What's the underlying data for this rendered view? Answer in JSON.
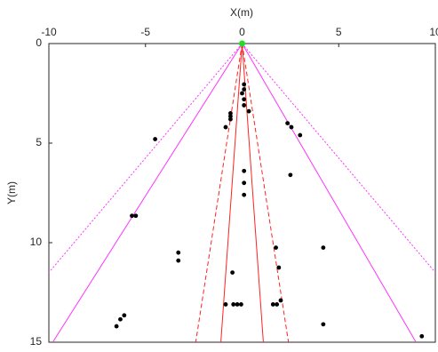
{
  "chart_data": {
    "type": "scatter",
    "x_label": "X(m)",
    "y_label": "Y(m)",
    "xlim": [
      -10,
      10
    ],
    "ylim": [
      0,
      15
    ],
    "y_inverted": true,
    "x_axis_position": "top",
    "xticks": [
      -10,
      -5,
      0,
      5,
      10
    ],
    "yticks": [
      0,
      5,
      10,
      15
    ],
    "series": [
      {
        "color": "#000000",
        "x": [
          0.1,
          0.1,
          0,
          0.1,
          0.1,
          0.35,
          -0.6,
          -0.6,
          -0.6,
          -0.85,
          2.35,
          2.55,
          3.0,
          -4.5,
          0.1,
          0.1,
          0.1,
          2.5,
          -5.7,
          -5.5,
          -3.3,
          -3.3,
          1.75,
          4.2,
          1.9,
          -0.5,
          -0.85,
          -0.45,
          -0.25,
          -0.05,
          1.6,
          1.8,
          2.0,
          -6.1,
          -6.3,
          -6.5,
          4.2,
          9.3
        ],
        "y": [
          2.05,
          2.3,
          2.5,
          2.8,
          3.1,
          3.4,
          3.5,
          3.65,
          3.8,
          4.2,
          4.0,
          4.2,
          4.6,
          4.8,
          6.4,
          7.0,
          7.6,
          6.6,
          8.65,
          8.65,
          10.5,
          10.9,
          10.25,
          10.25,
          11.25,
          11.5,
          13.1,
          13.1,
          13.1,
          13.1,
          13.1,
          13.1,
          12.9,
          13.65,
          13.85,
          14.2,
          14.1,
          14.7
        ]
      }
    ],
    "lines": [
      {
        "color": "#ff33ff",
        "style": "dotted",
        "x": [
          0,
          -10
        ],
        "y": [
          0,
          11.5
        ]
      },
      {
        "color": "#ff33ff",
        "style": "dotted",
        "x": [
          0,
          10
        ],
        "y": [
          0,
          11.5
        ]
      },
      {
        "color": "#ff33ff",
        "style": "solid",
        "x": [
          0,
          -9.8
        ],
        "y": [
          0,
          15
        ]
      },
      {
        "color": "#ff33ff",
        "style": "solid",
        "x": [
          0,
          9.0
        ],
        "y": [
          0,
          15
        ]
      },
      {
        "color": "#ff2222",
        "style": "dashed",
        "x": [
          0,
          -2.4
        ],
        "y": [
          0,
          15
        ]
      },
      {
        "color": "#ff2222",
        "style": "dashed",
        "x": [
          0,
          2.4
        ],
        "y": [
          0,
          15
        ]
      },
      {
        "color": "#ff2222",
        "style": "solid",
        "x": [
          0,
          -1.1
        ],
        "y": [
          0,
          15
        ]
      },
      {
        "color": "#ff2222",
        "style": "solid",
        "x": [
          0,
          1.1
        ],
        "y": [
          0,
          15
        ]
      }
    ],
    "origin": {
      "x": 0,
      "y": 0,
      "color": "#22dd22"
    }
  }
}
